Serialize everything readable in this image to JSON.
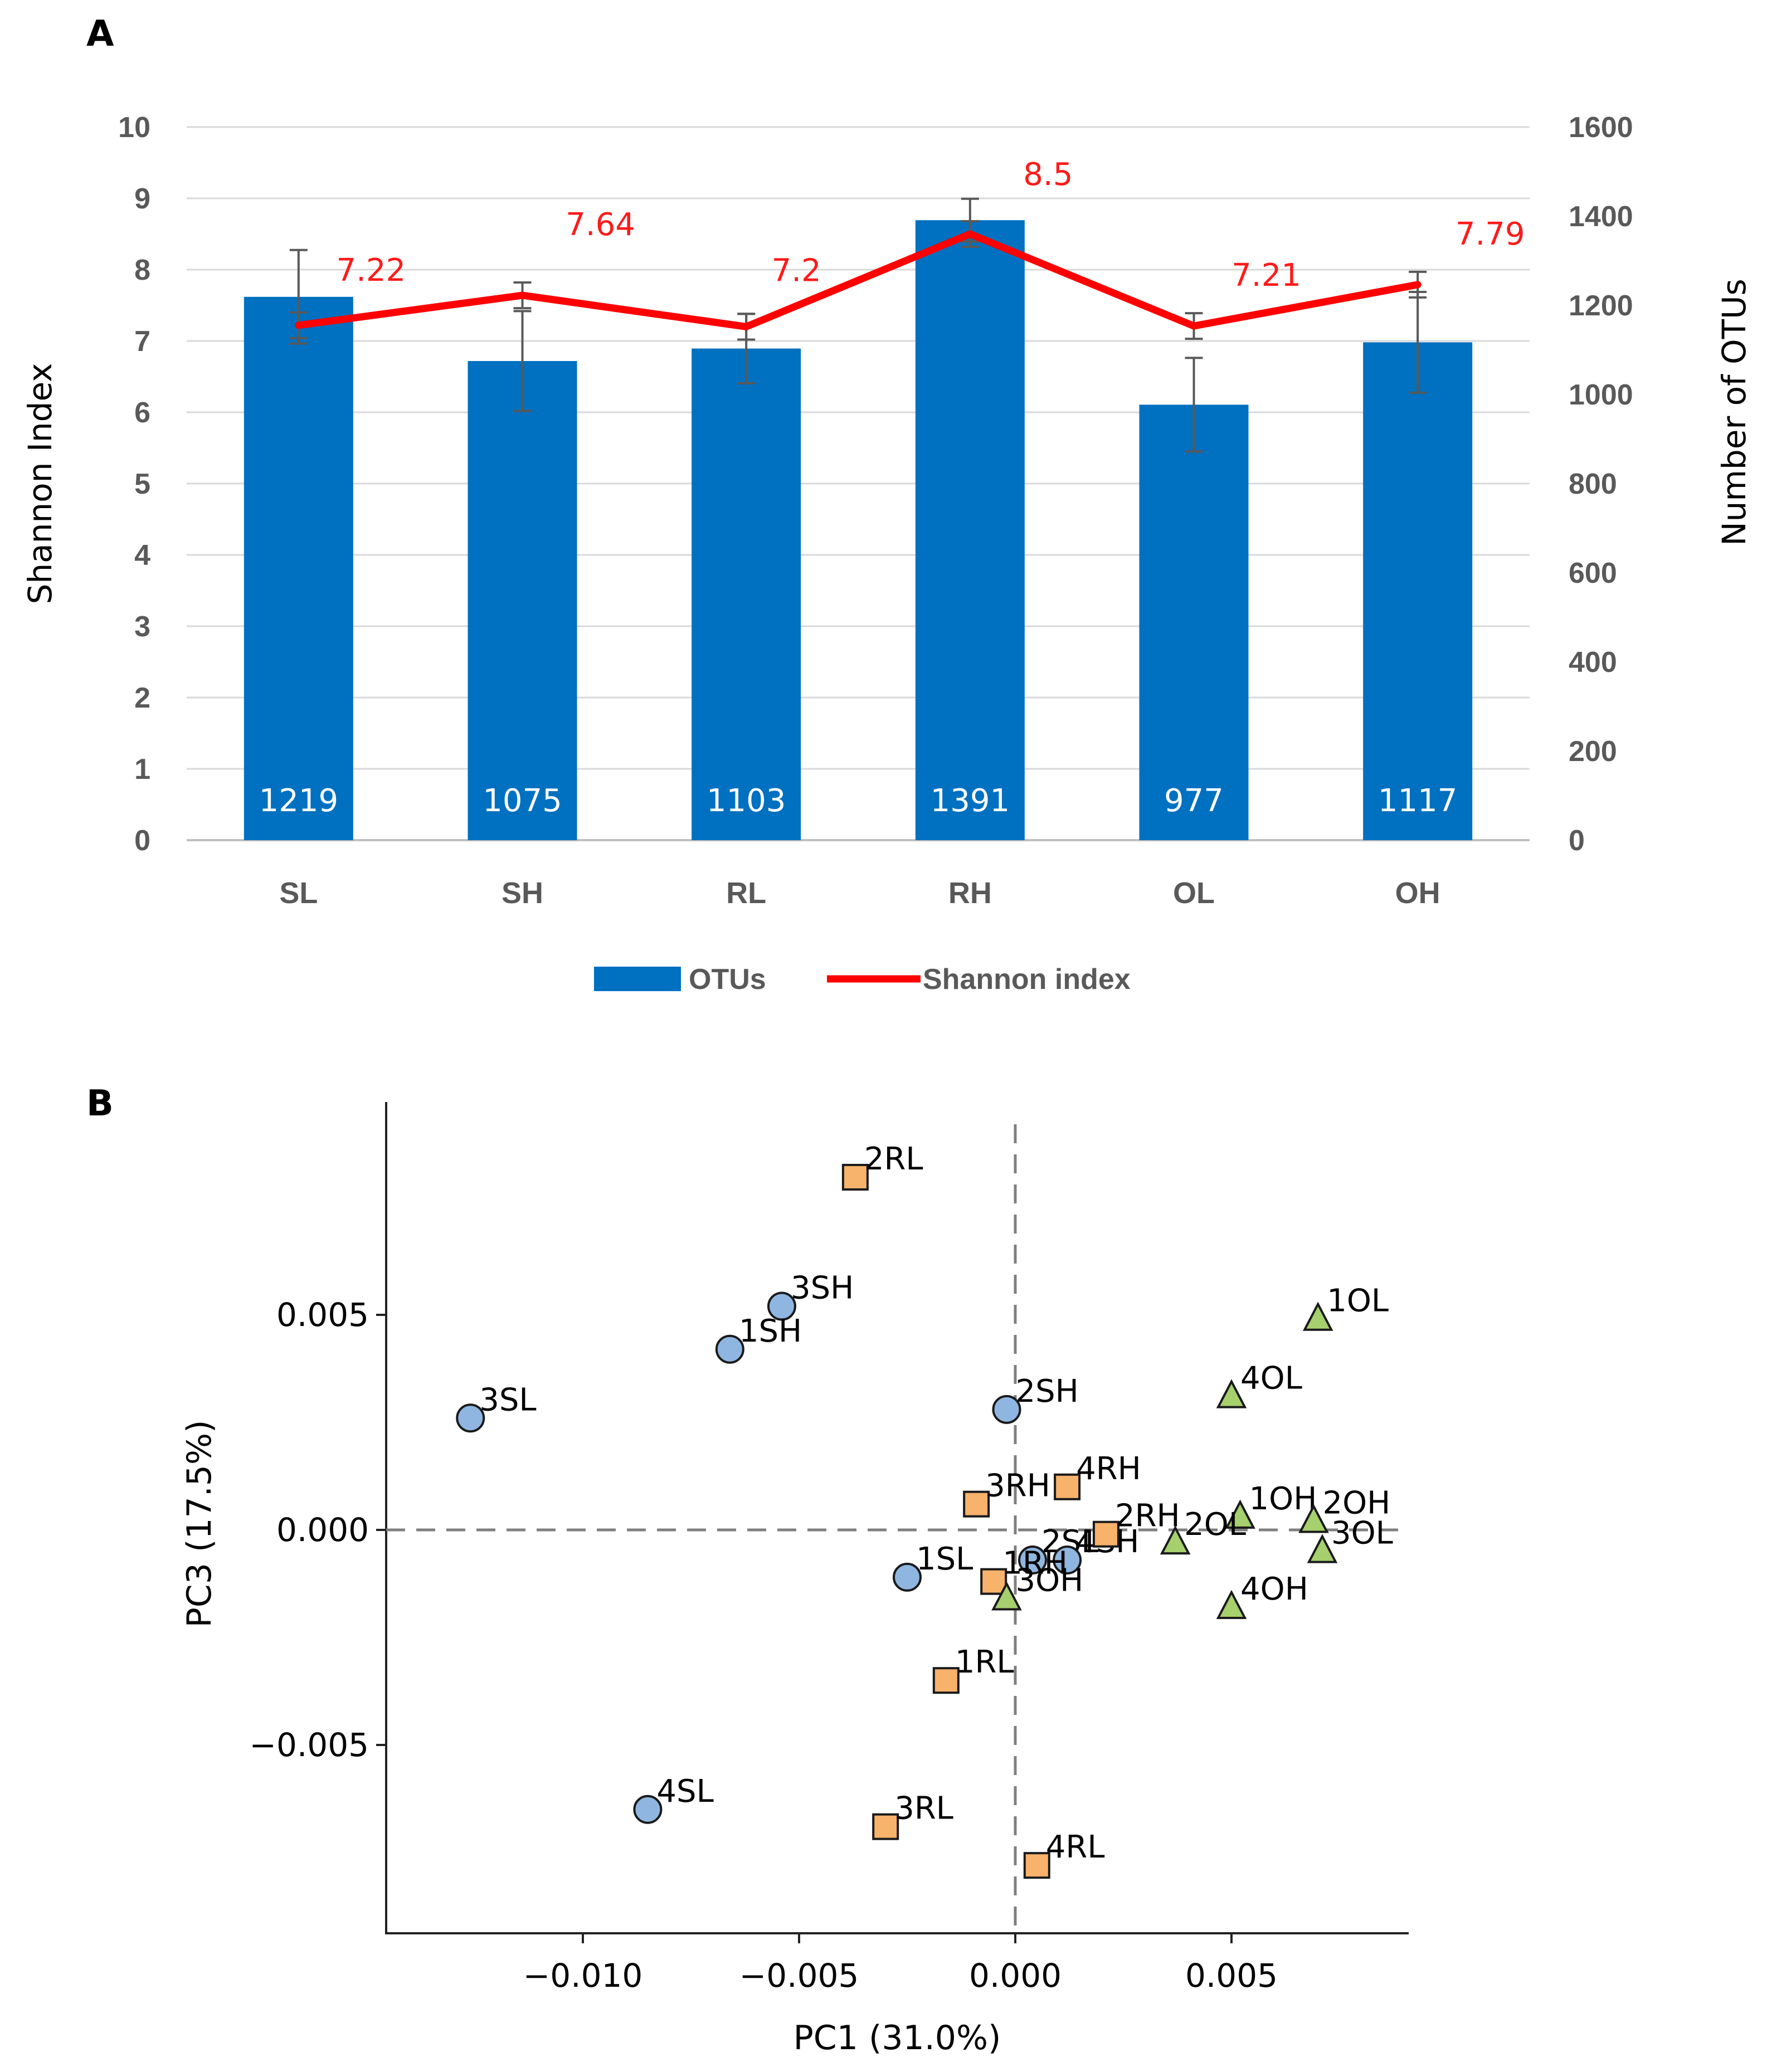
{
  "panels": {
    "a": "A",
    "b": "B"
  },
  "chart_data": [
    {
      "type": "bar+line",
      "categories": [
        "SL",
        "SH",
        "RL",
        "RH",
        "OL",
        "OH"
      ],
      "series": [
        {
          "name": "OTUs",
          "axis": "right",
          "color": "#0070c0",
          "values": [
            1219,
            1075,
            1103,
            1391,
            977,
            1117
          ],
          "labels": [
            "1219",
            "1075",
            "1103",
            "1391",
            "977",
            "1117"
          ],
          "error": [
            105,
            112,
            78,
            48,
            105,
            113
          ]
        },
        {
          "name": "Shannon index",
          "axis": "left",
          "color": "#ff0000",
          "values": [
            7.22,
            7.64,
            7.2,
            8.5,
            7.21,
            7.79
          ],
          "labels": [
            "7.22",
            "7.64",
            "7.2",
            "8.5",
            "7.21",
            "7.79"
          ],
          "error": [
            0.18,
            0.18,
            0.18,
            0.18,
            0.18,
            0.18
          ]
        }
      ],
      "ylabel_left": "Shannon Index",
      "ylabel_right": "Number of OTUs",
      "ylim_left": [
        0,
        10
      ],
      "ylim_right": [
        0,
        1600
      ],
      "yticks_left": [
        "0",
        "1",
        "2",
        "3",
        "4",
        "5",
        "6",
        "7",
        "8",
        "9",
        "10"
      ],
      "yticks_right": [
        "0",
        "200",
        "400",
        "600",
        "800",
        "1000",
        "1200",
        "1400",
        "1600"
      ],
      "legend": [
        "OTUs",
        "Shannon index"
      ],
      "legend_position": "bottom",
      "grid": true
    },
    {
      "type": "scatter",
      "xlabel": "PC1 (31.0%)",
      "ylabel": "PC3 (17.5%)",
      "xlim": [
        -0.0145,
        0.0091
      ],
      "ylim": [
        -0.0093,
        0.0102
      ],
      "xticks": [
        -0.01,
        -0.005,
        0.0,
        0.005
      ],
      "xtick_labels": [
        "−0.010",
        "−0.005",
        "0.000",
        "0.005"
      ],
      "yticks": [
        -0.005,
        0.0,
        0.005
      ],
      "ytick_labels": [
        "−0.005",
        "0.000",
        "0.005"
      ],
      "reference_lines": {
        "x": 0.0,
        "y": 0.0,
        "style": "dashed"
      },
      "groups": [
        {
          "name": "S",
          "marker": "circle",
          "color": "#8fb6e0",
          "points": [
            {
              "label": "3SL",
              "x": -0.0126,
              "y": 0.0026
            },
            {
              "label": "3SH",
              "x": -0.0054,
              "y": 0.0052
            },
            {
              "label": "1SH",
              "x": -0.0066,
              "y": 0.0042
            },
            {
              "label": "2SH",
              "x": -0.0002,
              "y": 0.0028
            },
            {
              "label": "1SL",
              "x": -0.0025,
              "y": -0.0011
            },
            {
              "label": "2SL",
              "x": 0.0004,
              "y": -0.0007
            },
            {
              "label": "4SH",
              "x": 0.0012,
              "y": -0.0007
            },
            {
              "label": "4SL",
              "x": -0.0085,
              "y": -0.0065
            }
          ]
        },
        {
          "name": "R",
          "marker": "square",
          "color": "#f7b26b",
          "points": [
            {
              "label": "2RL",
              "x": -0.0037,
              "y": 0.0082
            },
            {
              "label": "3RH",
              "x": -0.0009,
              "y": 0.0006
            },
            {
              "label": "4RH",
              "x": 0.0012,
              "y": 0.001
            },
            {
              "label": "2RH",
              "x": 0.0021,
              "y": -0.0001
            },
            {
              "label": "1RH",
              "x": -0.0005,
              "y": -0.0012
            },
            {
              "label": "1RL",
              "x": -0.0016,
              "y": -0.0035
            },
            {
              "label": "3RL",
              "x": -0.003,
              "y": -0.0069
            },
            {
              "label": "4RL",
              "x": 0.0005,
              "y": -0.0078
            }
          ]
        },
        {
          "name": "O",
          "marker": "triangle",
          "color": "#a6cf6d",
          "points": [
            {
              "label": "1OL",
              "x": 0.007,
              "y": 0.0049
            },
            {
              "label": "4OL",
              "x": 0.005,
              "y": 0.0031
            },
            {
              "label": "1OH",
              "x": 0.0052,
              "y": 0.0003
            },
            {
              "label": "2OH",
              "x": 0.0069,
              "y": 0.0002
            },
            {
              "label": "3OL",
              "x": 0.0071,
              "y": -0.0005
            },
            {
              "label": "2OL",
              "x": 0.0037,
              "y": -0.0003
            },
            {
              "label": "3OH",
              "x": -0.0002,
              "y": -0.0016
            },
            {
              "label": "4OH",
              "x": 0.005,
              "y": -0.0018
            }
          ]
        }
      ]
    }
  ]
}
